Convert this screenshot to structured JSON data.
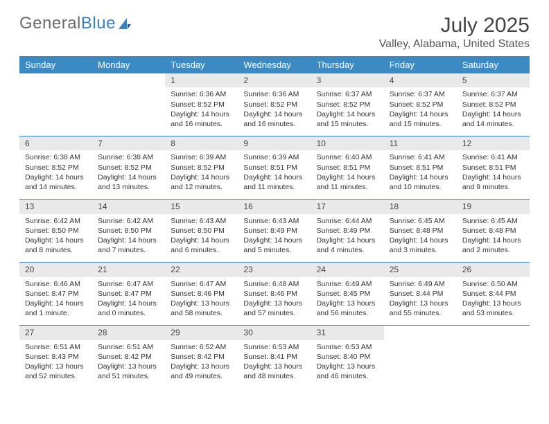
{
  "logo": {
    "text_gray": "General",
    "text_blue": "Blue"
  },
  "title": "July 2025",
  "location": "Valley, Alabama, United States",
  "colors": {
    "header_bg": "#3b8ac4",
    "header_text": "#ffffff",
    "daynum_bg": "#e9e9e9",
    "rule": "#3b7fc4",
    "logo_gray": "#6a6a6a",
    "logo_blue": "#3b7fc4",
    "body_text": "#333333",
    "page_bg": "#ffffff"
  },
  "typography": {
    "title_fontsize_pt": 22,
    "location_fontsize_pt": 12,
    "dayheader_fontsize_pt": 10,
    "daynum_fontsize_pt": 9,
    "body_fontsize_pt": 8
  },
  "day_names": [
    "Sunday",
    "Monday",
    "Tuesday",
    "Wednesday",
    "Thursday",
    "Friday",
    "Saturday"
  ],
  "weeks": [
    [
      null,
      null,
      {
        "n": "1",
        "sr": "6:36 AM",
        "ss": "8:52 PM",
        "dl": "14 hours and 16 minutes."
      },
      {
        "n": "2",
        "sr": "6:36 AM",
        "ss": "8:52 PM",
        "dl": "14 hours and 16 minutes."
      },
      {
        "n": "3",
        "sr": "6:37 AM",
        "ss": "8:52 PM",
        "dl": "14 hours and 15 minutes."
      },
      {
        "n": "4",
        "sr": "6:37 AM",
        "ss": "8:52 PM",
        "dl": "14 hours and 15 minutes."
      },
      {
        "n": "5",
        "sr": "6:37 AM",
        "ss": "8:52 PM",
        "dl": "14 hours and 14 minutes."
      }
    ],
    [
      {
        "n": "6",
        "sr": "6:38 AM",
        "ss": "8:52 PM",
        "dl": "14 hours and 14 minutes."
      },
      {
        "n": "7",
        "sr": "6:38 AM",
        "ss": "8:52 PM",
        "dl": "14 hours and 13 minutes."
      },
      {
        "n": "8",
        "sr": "6:39 AM",
        "ss": "8:52 PM",
        "dl": "14 hours and 12 minutes."
      },
      {
        "n": "9",
        "sr": "6:39 AM",
        "ss": "8:51 PM",
        "dl": "14 hours and 11 minutes."
      },
      {
        "n": "10",
        "sr": "6:40 AM",
        "ss": "8:51 PM",
        "dl": "14 hours and 11 minutes."
      },
      {
        "n": "11",
        "sr": "6:41 AM",
        "ss": "8:51 PM",
        "dl": "14 hours and 10 minutes."
      },
      {
        "n": "12",
        "sr": "6:41 AM",
        "ss": "8:51 PM",
        "dl": "14 hours and 9 minutes."
      }
    ],
    [
      {
        "n": "13",
        "sr": "6:42 AM",
        "ss": "8:50 PM",
        "dl": "14 hours and 8 minutes."
      },
      {
        "n": "14",
        "sr": "6:42 AM",
        "ss": "8:50 PM",
        "dl": "14 hours and 7 minutes."
      },
      {
        "n": "15",
        "sr": "6:43 AM",
        "ss": "8:50 PM",
        "dl": "14 hours and 6 minutes."
      },
      {
        "n": "16",
        "sr": "6:43 AM",
        "ss": "8:49 PM",
        "dl": "14 hours and 5 minutes."
      },
      {
        "n": "17",
        "sr": "6:44 AM",
        "ss": "8:49 PM",
        "dl": "14 hours and 4 minutes."
      },
      {
        "n": "18",
        "sr": "6:45 AM",
        "ss": "8:48 PM",
        "dl": "14 hours and 3 minutes."
      },
      {
        "n": "19",
        "sr": "6:45 AM",
        "ss": "8:48 PM",
        "dl": "14 hours and 2 minutes."
      }
    ],
    [
      {
        "n": "20",
        "sr": "6:46 AM",
        "ss": "8:47 PM",
        "dl": "14 hours and 1 minute."
      },
      {
        "n": "21",
        "sr": "6:47 AM",
        "ss": "8:47 PM",
        "dl": "14 hours and 0 minutes."
      },
      {
        "n": "22",
        "sr": "6:47 AM",
        "ss": "8:46 PM",
        "dl": "13 hours and 58 minutes."
      },
      {
        "n": "23",
        "sr": "6:48 AM",
        "ss": "8:46 PM",
        "dl": "13 hours and 57 minutes."
      },
      {
        "n": "24",
        "sr": "6:49 AM",
        "ss": "8:45 PM",
        "dl": "13 hours and 56 minutes."
      },
      {
        "n": "25",
        "sr": "6:49 AM",
        "ss": "8:44 PM",
        "dl": "13 hours and 55 minutes."
      },
      {
        "n": "26",
        "sr": "6:50 AM",
        "ss": "8:44 PM",
        "dl": "13 hours and 53 minutes."
      }
    ],
    [
      {
        "n": "27",
        "sr": "6:51 AM",
        "ss": "8:43 PM",
        "dl": "13 hours and 52 minutes."
      },
      {
        "n": "28",
        "sr": "6:51 AM",
        "ss": "8:42 PM",
        "dl": "13 hours and 51 minutes."
      },
      {
        "n": "29",
        "sr": "6:52 AM",
        "ss": "8:42 PM",
        "dl": "13 hours and 49 minutes."
      },
      {
        "n": "30",
        "sr": "6:53 AM",
        "ss": "8:41 PM",
        "dl": "13 hours and 48 minutes."
      },
      {
        "n": "31",
        "sr": "6:53 AM",
        "ss": "8:40 PM",
        "dl": "13 hours and 46 minutes."
      },
      null,
      null
    ]
  ],
  "labels": {
    "sunrise": "Sunrise:",
    "sunset": "Sunset:",
    "daylight": "Daylight:"
  }
}
